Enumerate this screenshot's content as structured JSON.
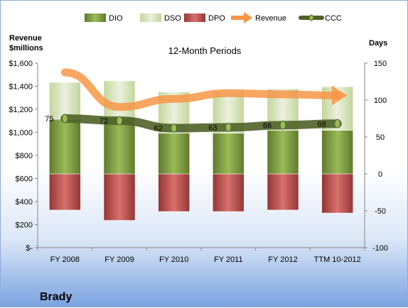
{
  "chart_data": {
    "type": "bar",
    "title": "12-Month Periods",
    "company": "Brady",
    "left_axis_label": [
      "Revenue",
      "$millions"
    ],
    "right_axis_label": "Days",
    "left_ticks": [
      "$-",
      "$200",
      "$400",
      "$600",
      "$800",
      "$1,000",
      "$1,200",
      "$1,400",
      "$1,600"
    ],
    "right_ticks": [
      "-100",
      "-50",
      "0",
      "50",
      "100",
      "150"
    ],
    "left_ylim": [
      0,
      1600
    ],
    "right_ylim": [
      -100,
      150
    ],
    "categories": [
      "FY 2008",
      "FY 2009",
      "FY 2010",
      "FY 2011",
      "FY 2012",
      "TTM 10-2012"
    ],
    "legend": [
      "DIO",
      "DSO",
      "DPO",
      "Revenue",
      "CCC"
    ],
    "legend_position": "top",
    "series": [
      {
        "name": "DIO",
        "axis": "right",
        "values": [
          74,
          76,
          55,
          55,
          59,
          59
        ],
        "color": "#77933c"
      },
      {
        "name": "DSO",
        "axis": "right",
        "values": [
          50,
          50,
          56,
          56,
          56,
          59
        ],
        "color": "#d7e4bd"
      },
      {
        "name": "DPO",
        "axis": "right",
        "values": [
          -49,
          -63,
          -51,
          -51,
          -49,
          -53
        ],
        "color": "#c0504d"
      },
      {
        "name": "Revenue",
        "axis": "left",
        "values": [
          1520,
          1220,
          1290,
          1340,
          1330,
          1320
        ],
        "color": "#f79646"
      },
      {
        "name": "CCC",
        "axis": "right",
        "values": [
          75,
          72,
          62,
          63,
          66,
          68
        ],
        "labels": [
          "75",
          "72",
          "62",
          "63",
          "66",
          "68"
        ],
        "color": "#4f6228"
      }
    ],
    "grid": false
  }
}
